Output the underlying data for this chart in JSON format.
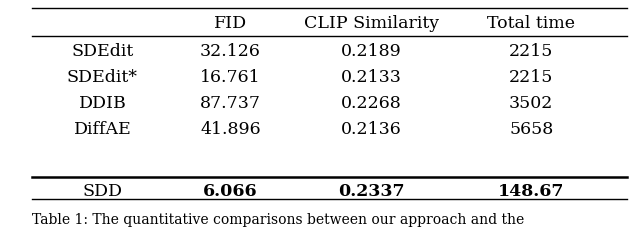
{
  "columns": [
    "",
    "FID",
    "CLIP Similarity",
    "Total time"
  ],
  "rows": [
    [
      "SDEdit",
      "32.126",
      "0.2189",
      "2215"
    ],
    [
      "SDEdit*",
      "16.761",
      "0.2133",
      "2215"
    ],
    [
      "DDIB",
      "87.737",
      "0.2268",
      "3502"
    ],
    [
      "DiffAE",
      "41.896",
      "0.2136",
      "5658"
    ],
    [
      "SDD",
      "6.066",
      "0.2337",
      "148.67"
    ]
  ],
  "bold_row_index": 4,
  "figsize": [
    6.4,
    2.32
  ],
  "dpi": 100,
  "font_size": 12.5,
  "header_font_size": 12.5,
  "caption": "Table 1: The quantitative comparisons between our approach and the",
  "caption_font_size": 10
}
